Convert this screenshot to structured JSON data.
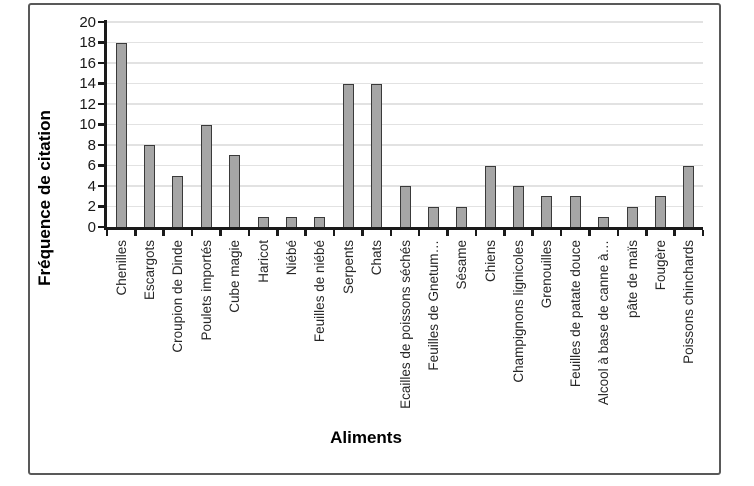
{
  "chart_data": {
    "type": "bar",
    "xlabel": "Aliments",
    "ylabel": "Fréquence de citation",
    "categories": [
      "Chenilles",
      "Escargots",
      "Croupion de Dinde",
      "Poulets importés",
      "Cube magie",
      "Haricot",
      "Niébé",
      "Feuilles de niébé",
      "Serpents",
      "Chats",
      "Ecailles de poissons séchés",
      "Feuilles de Gnetum…",
      "Sésame",
      "Chiens",
      "Champignons lignicoles",
      "Grenouilles",
      "Feuilles de patate douce",
      "Alcool à base de canne à…",
      "pâte de maïs",
      "Fougère",
      "Poissons chinchards"
    ],
    "values": [
      18,
      8,
      5,
      10,
      7,
      1,
      1,
      1,
      14,
      14,
      4,
      2,
      2,
      6,
      4,
      3,
      3,
      1,
      2,
      3,
      6
    ],
    "ylim": [
      0,
      20
    ],
    "yticks": [
      0,
      2,
      4,
      6,
      8,
      10,
      12,
      14,
      16,
      18,
      20
    ],
    "grid": "horizontal",
    "legend": "none",
    "colors": {
      "bar_fill": "#a6a6a6",
      "bar_border": "#3a3a3a",
      "gridline": "#e2e2e2",
      "axis": "#1a1a1a",
      "frame_border": "#595959",
      "background": "#ffffff"
    }
  }
}
